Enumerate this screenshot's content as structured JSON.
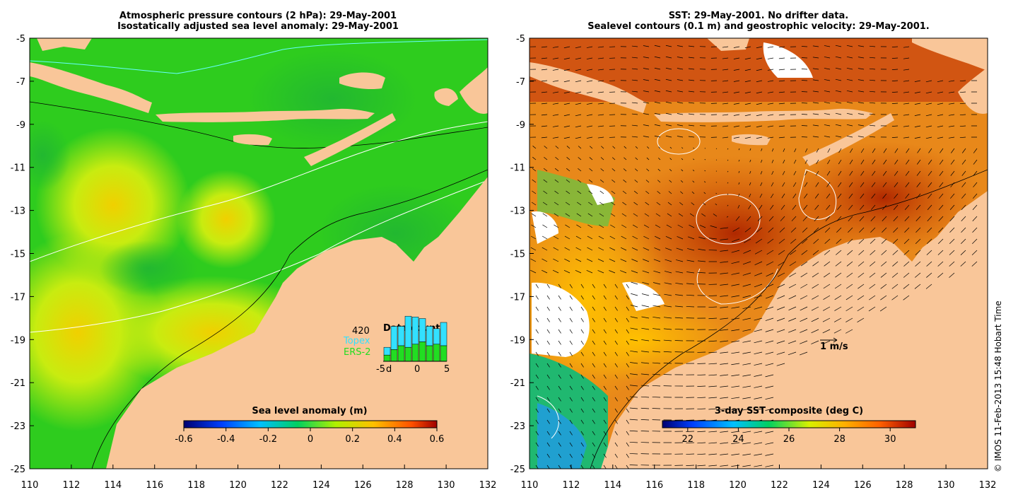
{
  "left_panel": {
    "title_line1": "Atmospheric pressure contours (2 hPa): 29-May-2001",
    "title_line2": "Isostatically adjusted sea level anomaly: 29-May-2001",
    "colorbar": {
      "label": "Sea level anomaly (m)",
      "ticks": [
        "-0.6",
        "-0.4",
        "-0.2",
        "0",
        "0.2",
        "0.4",
        "0.6"
      ],
      "range": [
        -0.6,
        0.6
      ]
    },
    "data_count": {
      "title": "Data count",
      "max_label": "420",
      "series": [
        "Topex",
        "ERS-2"
      ],
      "series_colors": [
        "#33e0ff",
        "#22dd22"
      ],
      "x_ticks": [
        "-5",
        "d",
        "0",
        "5"
      ],
      "topex_values": [
        10,
        30,
        25,
        40,
        35,
        30,
        25,
        20,
        30
      ],
      "ers2_values": [
        8,
        15,
        20,
        18,
        22,
        25,
        20,
        22,
        20
      ]
    }
  },
  "right_panel": {
    "title_line1": "SST: 29-May-2001. No drifter data.",
    "title_line2": "Sealevel contours (0.1 m) and geostrophic velocity: 29-May-2001.",
    "velocity_scale_label": "1 m/s",
    "colorbar": {
      "label": "3-day SST composite (deg C)",
      "ticks": [
        "22",
        "24",
        "26",
        "28",
        "30"
      ],
      "range": [
        21,
        31
      ]
    }
  },
  "axes": {
    "lon_ticks": [
      "110",
      "112",
      "114",
      "116",
      "118",
      "120",
      "122",
      "124",
      "126",
      "128",
      "130",
      "132"
    ],
    "lat_ticks": [
      "-5",
      "-7",
      "-9",
      "-11",
      "-13",
      "-15",
      "-17",
      "-19",
      "-21",
      "-23",
      "-25"
    ],
    "lon_range": [
      110,
      132
    ],
    "lat_range": [
      -25,
      -5
    ]
  },
  "credit": "© IMOS 11-Feb-2013 15:48 Hobart Time",
  "colors": {
    "land": "#f9c699",
    "ocean_left_base": "#2ecc1e",
    "ocean_right_base": "#e0701a"
  }
}
